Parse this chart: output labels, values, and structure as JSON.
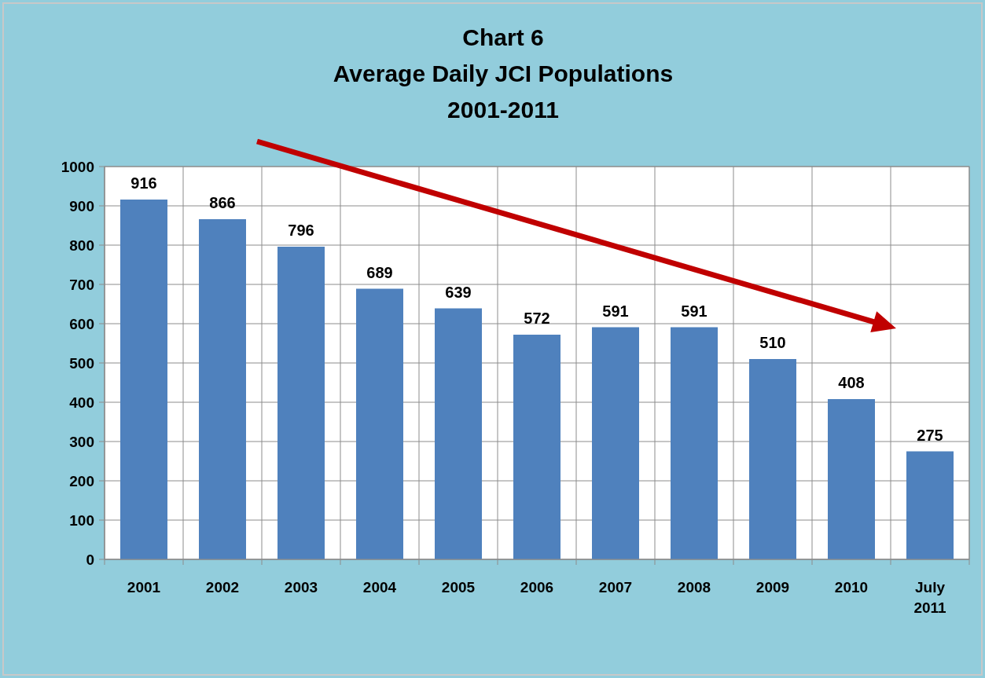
{
  "chart_data": {
    "type": "bar",
    "title": "Chart 6\nAverage Daily JCI Populations\n2001-2011",
    "categories": [
      "2001",
      "2002",
      "2003",
      "2004",
      "2005",
      "2006",
      "2007",
      "2008",
      "2009",
      "2010",
      "July\n2011"
    ],
    "values": [
      916,
      866,
      796,
      689,
      639,
      572,
      591,
      591,
      510,
      408,
      275
    ],
    "color": "#4f81bd",
    "ylim": [
      0,
      1000
    ],
    "yticks": [
      0,
      100,
      200,
      300,
      400,
      500,
      600,
      700,
      800,
      900,
      1000
    ],
    "grid": true,
    "data_labels": true
  }
}
